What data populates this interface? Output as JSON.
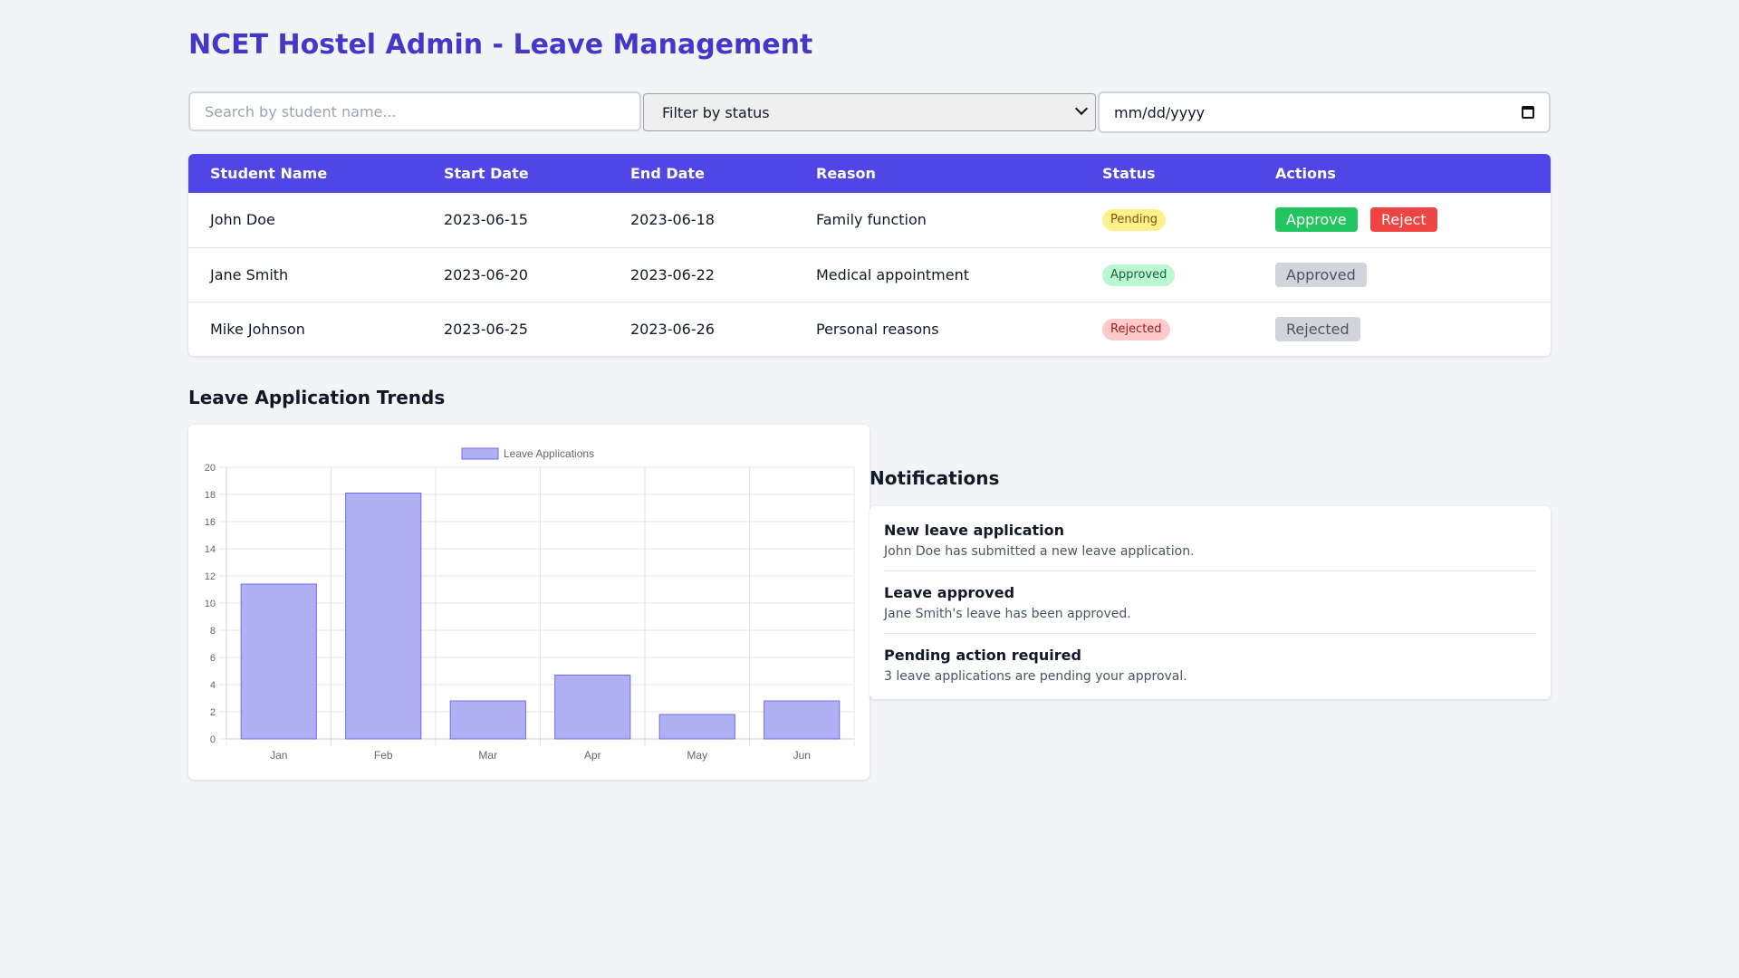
{
  "header": {
    "title": "NCET Hostel Admin - Leave Management"
  },
  "filters": {
    "search_placeholder": "Search by student name...",
    "status_selected": "Filter by status",
    "date_placeholder": "mm/dd/yyyy"
  },
  "table": {
    "columns": [
      "Student Name",
      "Start Date",
      "End Date",
      "Reason",
      "Status",
      "Actions"
    ],
    "rows": [
      {
        "name": "John Doe",
        "start": "2023-06-15",
        "end": "2023-06-18",
        "reason": "Family function",
        "status": "Pending",
        "action_primary": "Approve",
        "action_secondary": "Reject"
      },
      {
        "name": "Jane Smith",
        "start": "2023-06-20",
        "end": "2023-06-22",
        "reason": "Medical appointment",
        "status": "Approved",
        "action_primary": "Approved"
      },
      {
        "name": "Mike Johnson",
        "start": "2023-06-25",
        "end": "2023-06-26",
        "reason": "Personal reasons",
        "status": "Rejected",
        "action_primary": "Rejected"
      }
    ]
  },
  "trends": {
    "title": "Leave Application Trends"
  },
  "chart_data": {
    "type": "bar",
    "categories": [
      "Jan",
      "Feb",
      "Mar",
      "Apr",
      "May",
      "Jun"
    ],
    "series": [
      {
        "name": "Leave Applications",
        "values": [
          11.4,
          18.1,
          2.8,
          4.7,
          1.8,
          2.8
        ]
      }
    ],
    "ylim": [
      0,
      20
    ],
    "yticks": [
      0,
      2,
      4,
      6,
      8,
      10,
      12,
      14,
      16,
      18,
      20
    ],
    "grid": true,
    "legend": "top",
    "colors": {
      "fill": "#b0b1f5",
      "stroke": "#6f6ae8"
    }
  },
  "notifications": {
    "title": "Notifications",
    "items": [
      {
        "title": "New leave application",
        "message": "John Doe has submitted a new leave application."
      },
      {
        "title": "Leave approved",
        "message": "Jane Smith's leave has been approved."
      },
      {
        "title": "Pending action required",
        "message": "3 leave applications are pending your approval."
      }
    ]
  },
  "colors": {
    "accent": "#4338ca",
    "table_header": "#4f46e5",
    "approve": "#22c55e",
    "reject": "#ef4444"
  }
}
